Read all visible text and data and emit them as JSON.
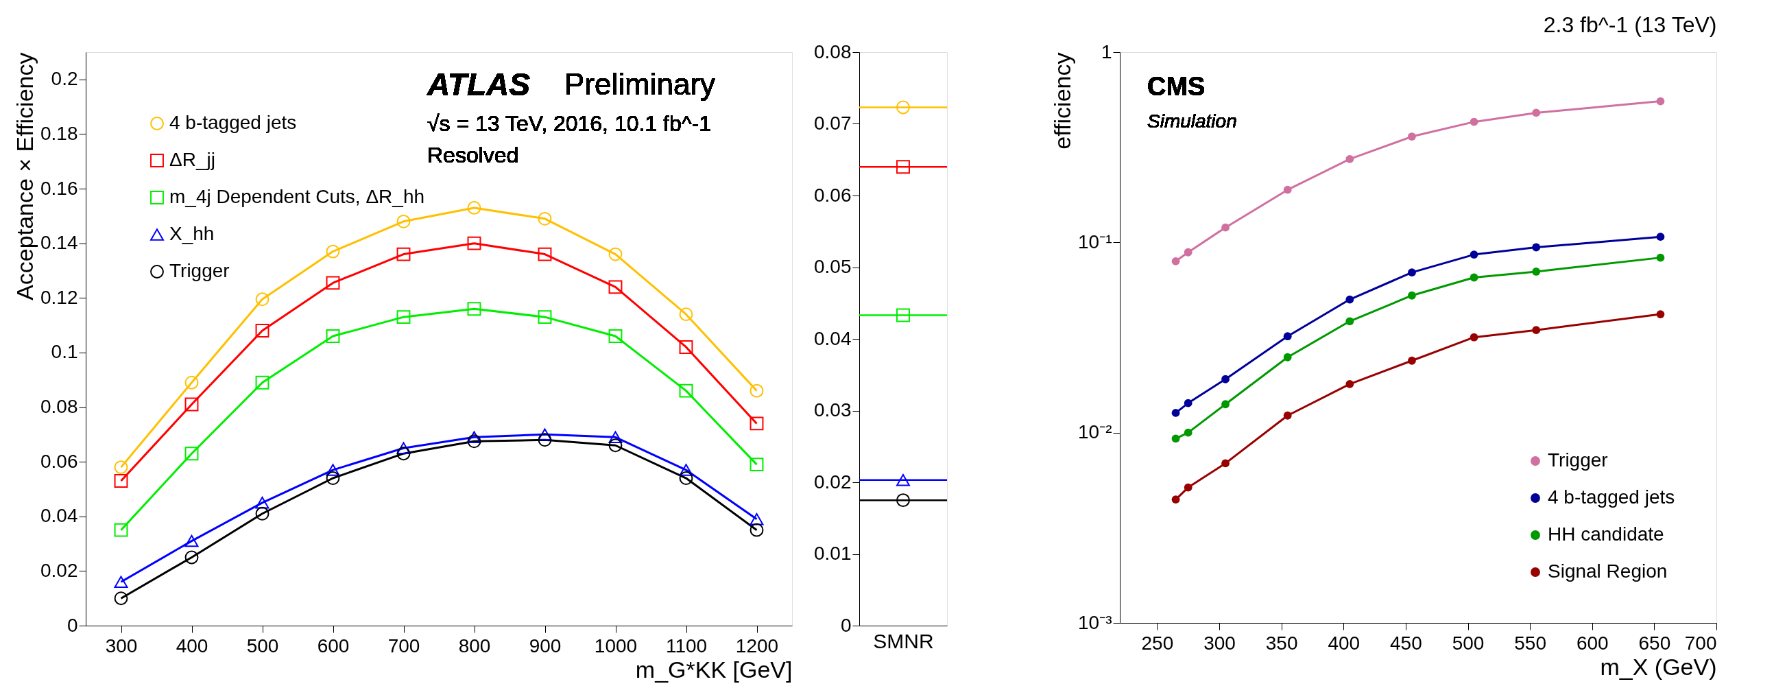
{
  "chart_data": [
    {
      "type": "line",
      "xlabel": "m_G*KK [GeV]",
      "ylabel": "Acceptance × Efficiency",
      "annotations": [
        "ATLAS",
        "Preliminary",
        "√s = 13 TeV, 2016, 10.1 fb^-1",
        "Resolved"
      ],
      "x": [
        300,
        400,
        500,
        600,
        700,
        800,
        900,
        1000,
        1100,
        1200
      ],
      "series": [
        {
          "name": "4 b-tagged jets",
          "color": "#ffc000",
          "marker": "circle",
          "values": [
            0.058,
            0.089,
            0.1195,
            0.137,
            0.148,
            0.153,
            0.149,
            0.136,
            0.114,
            0.086
          ]
        },
        {
          "name": "ΔR_jj",
          "color": "#ff0000",
          "marker": "square",
          "values": [
            0.053,
            0.081,
            0.108,
            0.1255,
            0.136,
            0.14,
            0.136,
            0.124,
            0.102,
            0.074
          ]
        },
        {
          "name": "m_4j Dependent Cuts, ΔR_hh",
          "color": "#00ee00",
          "marker": "square",
          "values": [
            0.035,
            0.063,
            0.089,
            0.106,
            0.113,
            0.116,
            0.113,
            0.106,
            0.086,
            0.059
          ]
        },
        {
          "name": "X_hh",
          "color": "#0000ff",
          "marker": "triangle",
          "values": [
            0.016,
            0.031,
            0.045,
            0.057,
            0.065,
            0.069,
            0.07,
            0.069,
            0.057,
            0.039
          ]
        },
        {
          "name": "Trigger",
          "color": "#000000",
          "marker": "circle",
          "values": [
            0.01,
            0.025,
            0.041,
            0.054,
            0.063,
            0.0675,
            0.068,
            0.066,
            0.054,
            0.035
          ]
        }
      ],
      "xlim": [
        250,
        1250
      ],
      "xticks": [
        300,
        400,
        500,
        600,
        700,
        800,
        900,
        1000,
        1100,
        1200
      ],
      "ylim": [
        0,
        0.21
      ],
      "yticks": [
        0,
        0.02,
        0.04,
        0.06,
        0.08,
        0.1,
        0.12,
        0.14,
        0.16,
        0.18,
        0.2
      ],
      "grid": false,
      "legend": "top left"
    },
    {
      "type": "scatter",
      "categories": [
        "SMNR"
      ],
      "ref_lines": [
        {
          "axis": "y",
          "value": 0.0723,
          "color": "#ffc000"
        },
        {
          "axis": "y",
          "value": 0.064,
          "color": "#ff0000"
        },
        {
          "axis": "y",
          "value": 0.0433,
          "color": "#00ee00"
        },
        {
          "axis": "y",
          "value": 0.0203,
          "color": "#0000ff"
        },
        {
          "axis": "y",
          "value": 0.0175,
          "color": "#000000"
        }
      ],
      "series": [
        {
          "color": "#ffc000",
          "marker": "circle",
          "values": [
            0.0723
          ]
        },
        {
          "color": "#ff0000",
          "marker": "square",
          "values": [
            0.064
          ]
        },
        {
          "color": "#00ee00",
          "marker": "square",
          "values": [
            0.0433
          ]
        },
        {
          "color": "#0000ff",
          "marker": "triangle",
          "values": [
            0.0203
          ]
        },
        {
          "color": "#000000",
          "marker": "circle",
          "values": [
            0.0175
          ]
        }
      ],
      "ylim": [
        0,
        0.08
      ],
      "yticks": [
        0,
        0.01,
        0.02,
        0.03,
        0.04,
        0.05,
        0.06,
        0.07,
        0.08
      ],
      "grid": false,
      "legend": false
    },
    {
      "type": "line",
      "title": "2.3 fb^-1 (13 TeV)",
      "xlabel": "m_X (GeV)",
      "ylabel": "efficiency",
      "log": "y",
      "annotations": [
        "CMS",
        "Simulation"
      ],
      "x": [
        265,
        275,
        305,
        355,
        405,
        455,
        505,
        555,
        655
      ],
      "series": [
        {
          "name": "Trigger",
          "color": "#d070a0",
          "marker": "circle",
          "values": [
            0.0796,
            0.0887,
            0.1197,
            0.189,
            0.274,
            0.36,
            0.43,
            0.48,
            0.552
          ]
        },
        {
          "name": "4 b-tagged jets",
          "color": "#000099",
          "marker": "circle",
          "values": [
            0.0127,
            0.0143,
            0.0191,
            0.0321,
            0.0501,
            0.0695,
            0.0863,
            0.0942,
            0.107
          ]
        },
        {
          "name": "HH candidate",
          "color": "#009900",
          "marker": "circle",
          "values": [
            0.0093,
            0.01,
            0.0141,
            0.0249,
            0.0385,
            0.0526,
            0.0654,
            0.0702,
            0.0831
          ]
        },
        {
          "name": "Signal Region",
          "color": "#990000",
          "marker": "circle",
          "values": [
            0.00445,
            0.00515,
            0.0069,
            0.0123,
            0.018,
            0.0239,
            0.0317,
            0.0346,
            0.0419
          ]
        }
      ],
      "xlim": [
        220,
        700
      ],
      "xticks": [
        250,
        300,
        350,
        400,
        450,
        500,
        550,
        600,
        650,
        700
      ],
      "ylim": [
        0.001,
        1
      ],
      "yticks": [
        {
          "value": 0.001,
          "label": "10⁻³"
        },
        {
          "value": 0.01,
          "label": "10⁻²"
        },
        {
          "value": 0.1,
          "label": "10⁻¹"
        },
        1
      ],
      "grid": false,
      "legend": "bottom right"
    }
  ]
}
